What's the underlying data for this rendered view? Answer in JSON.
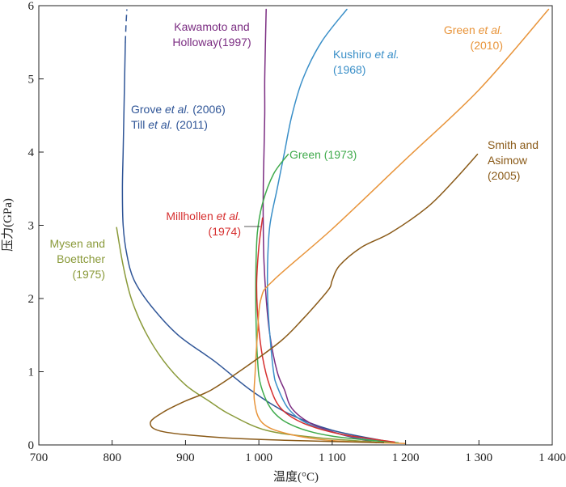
{
  "chart_data": {
    "type": "line",
    "xlabel": "温度(°C)",
    "ylabel": "压力(GPa)",
    "xlim": [
      700,
      1400
    ],
    "ylim": [
      0,
      6
    ],
    "xticks": [
      700,
      800,
      900,
      1000,
      1100,
      1200,
      1300,
      1400
    ],
    "xtick_labels": [
      "700",
      "800",
      "900",
      "1 000",
      "1 100",
      "1 200",
      "1 300",
      "1 400"
    ],
    "yticks": [
      0,
      1,
      2,
      3,
      4,
      5,
      6
    ],
    "ytick_labels": [
      "0",
      "1",
      "2",
      "3",
      "4",
      "5",
      "6"
    ],
    "grid": false,
    "series": [
      {
        "name": "Grove et al. (2006) Till et al. (2011)",
        "color": "#2f5597",
        "points": [
          [
            1180,
            0.04
          ],
          [
            1100,
            0.2
          ],
          [
            1040,
            0.43
          ],
          [
            990,
            0.74
          ],
          [
            940,
            1.14
          ],
          [
            890,
            1.5
          ],
          [
            853,
            1.9
          ],
          [
            830,
            2.25
          ],
          [
            820,
            2.6
          ],
          [
            815,
            3.0
          ],
          [
            814,
            3.5
          ],
          [
            815,
            4.0
          ],
          [
            816,
            4.5
          ],
          [
            817,
            5.0
          ],
          [
            818,
            5.5
          ]
        ],
        "dashed_points": [
          [
            818,
            5.5
          ],
          [
            819,
            5.75
          ],
          [
            820,
            5.95
          ]
        ]
      },
      {
        "name": "Kawamoto and Holloway(1997)",
        "color": "#7b2d82",
        "points": [
          [
            1160,
            0.03
          ],
          [
            1110,
            0.15
          ],
          [
            1070,
            0.3
          ],
          [
            1045,
            0.5
          ],
          [
            1035,
            0.75
          ],
          [
            1025,
            1.0
          ],
          [
            1015,
            1.5
          ],
          [
            1010,
            2.0
          ],
          [
            1007,
            2.5
          ],
          [
            1006,
            3.0
          ],
          [
            1006,
            3.5
          ],
          [
            1007,
            4.0
          ],
          [
            1008,
            4.5
          ],
          [
            1008,
            5.0
          ],
          [
            1009,
            5.5
          ],
          [
            1010,
            5.95
          ]
        ]
      },
      {
        "name": "Kushiro et al. (1968)",
        "color": "#3a8fc8",
        "points": [
          [
            1180,
            0.03
          ],
          [
            1110,
            0.15
          ],
          [
            1065,
            0.3
          ],
          [
            1040,
            0.5
          ],
          [
            1025,
            0.8
          ],
          [
            1020,
            1.0
          ],
          [
            1015,
            1.5
          ],
          [
            1012,
            2.0
          ],
          [
            1012,
            2.5
          ],
          [
            1015,
            3.0
          ],
          [
            1025,
            3.5
          ],
          [
            1035,
            4.0
          ],
          [
            1045,
            4.5
          ],
          [
            1060,
            5.0
          ],
          [
            1085,
            5.5
          ],
          [
            1120,
            5.95
          ]
        ]
      },
      {
        "name": "Green (1973)",
        "color": "#3faa4b",
        "points": [
          [
            1190,
            0.03
          ],
          [
            1100,
            0.12
          ],
          [
            1050,
            0.25
          ],
          [
            1020,
            0.45
          ],
          [
            1003,
            0.8
          ],
          [
            998,
            1.2
          ],
          [
            996,
            1.8
          ],
          [
            996,
            2.4
          ],
          [
            998,
            2.9
          ],
          [
            1005,
            3.3
          ],
          [
            1020,
            3.7
          ],
          [
            1040,
            3.97
          ]
        ]
      },
      {
        "name": "Millhollen et al. (1974)",
        "color": "#d62f2f",
        "points": [
          [
            1185,
            0.04
          ],
          [
            1110,
            0.15
          ],
          [
            1060,
            0.3
          ],
          [
            1030,
            0.5
          ],
          [
            1015,
            0.8
          ],
          [
            1005,
            1.2
          ],
          [
            999,
            1.7
          ],
          [
            997,
            2.2
          ],
          [
            1000,
            2.7
          ],
          [
            1005,
            3.1
          ]
        ]
      },
      {
        "name": "Mysen and Boettcher (1975)",
        "color": "#8a9a3a",
        "points": [
          [
            1170,
            0.03
          ],
          [
            1080,
            0.1
          ],
          [
            1010,
            0.2
          ],
          [
            960,
            0.42
          ],
          [
            932,
            0.6
          ],
          [
            900,
            0.82
          ],
          [
            870,
            1.15
          ],
          [
            845,
            1.55
          ],
          [
            826,
            2.0
          ],
          [
            815,
            2.45
          ],
          [
            806,
            2.97
          ]
        ]
      },
      {
        "name": "Green et al. (2010)",
        "color": "#e8943a",
        "points": [
          [
            1200,
            0.02
          ],
          [
            1100,
            0.06
          ],
          [
            1040,
            0.15
          ],
          [
            1005,
            0.3
          ],
          [
            994,
            0.6
          ],
          [
            995,
            1.0
          ],
          [
            998,
            1.5
          ],
          [
            1003,
            2.0
          ],
          [
            1020,
            2.25
          ],
          [
            1100,
            2.95
          ],
          [
            1200,
            3.9
          ],
          [
            1300,
            4.85
          ],
          [
            1395,
            5.95
          ]
        ]
      },
      {
        "name": "Smith and Asimow (2005)",
        "color": "#8a5a18",
        "points": [
          [
            1170,
            0.03
          ],
          [
            1050,
            0.06
          ],
          [
            950,
            0.1
          ],
          [
            870,
            0.18
          ],
          [
            852,
            0.3
          ],
          [
            870,
            0.45
          ],
          [
            900,
            0.6
          ],
          [
            935,
            0.75
          ],
          [
            980,
            1.05
          ],
          [
            1030,
            1.42
          ],
          [
            1060,
            1.72
          ],
          [
            1085,
            2.0
          ],
          [
            1097,
            2.15
          ],
          [
            1100,
            2.25
          ],
          [
            1110,
            2.45
          ],
          [
            1140,
            2.7
          ],
          [
            1180,
            2.9
          ],
          [
            1230,
            3.25
          ],
          [
            1265,
            3.6
          ],
          [
            1298,
            3.97
          ]
        ]
      }
    ],
    "labels": [
      {
        "id": "grove",
        "color": "#2f5597",
        "lines": [
          {
            "parts": [
              {
                "t": "Grove "
              },
              {
                "t": "et al.",
                "i": true
              },
              {
                "t": " (2006)"
              }
            ]
          },
          {
            "parts": [
              {
                "t": "Till "
              },
              {
                "t": "et al.",
                "i": true
              },
              {
                "t": " (2011)"
              }
            ]
          }
        ]
      },
      {
        "id": "kawamoto",
        "color": "#7b2d82",
        "lines": [
          {
            "parts": [
              {
                "t": "Kawamoto and"
              }
            ]
          },
          {
            "parts": [
              {
                "t": "Holloway(1997)"
              }
            ]
          }
        ]
      },
      {
        "id": "kushiro",
        "color": "#3a8fc8",
        "lines": [
          {
            "parts": [
              {
                "t": "Kushiro "
              },
              {
                "t": "et al.",
                "i": true
              }
            ]
          },
          {
            "parts": [
              {
                "t": "(1968)"
              }
            ]
          }
        ]
      },
      {
        "id": "green1973",
        "color": "#3faa4b",
        "lines": [
          {
            "parts": [
              {
                "t": "Green (1973)"
              }
            ]
          }
        ]
      },
      {
        "id": "millhollen",
        "color": "#d62f2f",
        "lines": [
          {
            "parts": [
              {
                "t": "Millhollen "
              },
              {
                "t": "et al.",
                "i": true
              }
            ]
          },
          {
            "parts": [
              {
                "t": "(1974)"
              }
            ]
          }
        ]
      },
      {
        "id": "mysen",
        "color": "#8a9a3a",
        "lines": [
          {
            "parts": [
              {
                "t": "Mysen and"
              }
            ]
          },
          {
            "parts": [
              {
                "t": "Boettcher"
              }
            ]
          },
          {
            "parts": [
              {
                "t": "(1975)"
              }
            ]
          }
        ]
      },
      {
        "id": "green2010",
        "color": "#e8943a",
        "lines": [
          {
            "parts": [
              {
                "t": "Green "
              },
              {
                "t": "et al.",
                "i": true
              }
            ]
          },
          {
            "parts": [
              {
                "t": "(2010)"
              }
            ]
          }
        ]
      },
      {
        "id": "smith",
        "color": "#8a5a18",
        "lines": [
          {
            "parts": [
              {
                "t": "Smith and"
              }
            ]
          },
          {
            "parts": [
              {
                "t": "Asimow"
              }
            ]
          },
          {
            "parts": [
              {
                "t": "(2005)"
              }
            ]
          }
        ]
      }
    ]
  }
}
